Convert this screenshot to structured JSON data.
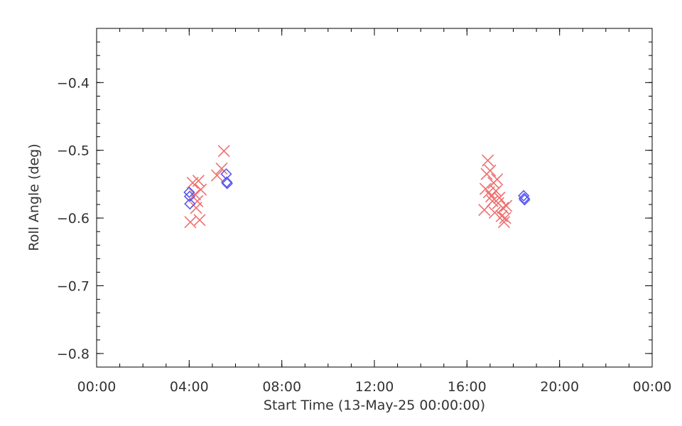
{
  "chart_data": {
    "type": "scatter",
    "title": "",
    "xlabel": "Start Time (13-May-25 00:00:00)",
    "ylabel": "Roll Angle (deg)",
    "xlim": [
      0,
      24
    ],
    "ylim": [
      -0.82,
      -0.32
    ],
    "x_ticks": [
      0,
      4,
      8,
      12,
      16,
      20,
      24
    ],
    "x_tick_labels": [
      "00:00",
      "04:00",
      "08:00",
      "12:00",
      "16:00",
      "20:00",
      "00:00"
    ],
    "x_minor_step": 1,
    "y_ticks": [
      -0.8,
      -0.7,
      -0.6,
      -0.5,
      -0.4
    ],
    "y_tick_labels": [
      "-0.8",
      "-0.7",
      "-0.6",
      "-0.5",
      "-0.4"
    ],
    "y_minor_step": 0.02,
    "grid": false,
    "series": [
      {
        "marker": "x",
        "color": "#f07070",
        "points": [
          [
            4.05,
            -0.606
          ],
          [
            4.15,
            -0.548
          ],
          [
            4.25,
            -0.565
          ],
          [
            4.3,
            -0.585
          ],
          [
            4.35,
            -0.575
          ],
          [
            4.4,
            -0.545
          ],
          [
            4.45,
            -0.603
          ],
          [
            4.5,
            -0.558
          ],
          [
            5.2,
            -0.537
          ],
          [
            5.4,
            -0.527
          ],
          [
            5.5,
            -0.501
          ],
          [
            16.75,
            -0.588
          ],
          [
            16.8,
            -0.557
          ],
          [
            16.85,
            -0.535
          ],
          [
            16.9,
            -0.515
          ],
          [
            16.95,
            -0.562
          ],
          [
            17.0,
            -0.53
          ],
          [
            17.05,
            -0.568
          ],
          [
            17.1,
            -0.575
          ],
          [
            17.15,
            -0.548
          ],
          [
            17.2,
            -0.592
          ],
          [
            17.25,
            -0.56
          ],
          [
            17.3,
            -0.543
          ],
          [
            17.35,
            -0.578
          ],
          [
            17.4,
            -0.57
          ],
          [
            17.5,
            -0.597
          ],
          [
            17.55,
            -0.585
          ],
          [
            17.6,
            -0.606
          ],
          [
            17.7,
            -0.582
          ],
          [
            17.65,
            -0.6
          ]
        ]
      },
      {
        "marker": "diamond",
        "color": "#5a5af0",
        "points": [
          [
            4.0,
            -0.562
          ],
          [
            4.02,
            -0.568
          ],
          [
            4.03,
            -0.579
          ],
          [
            5.6,
            -0.535
          ],
          [
            5.62,
            -0.547
          ],
          [
            5.64,
            -0.549
          ],
          [
            18.45,
            -0.567
          ],
          [
            18.47,
            -0.571
          ],
          [
            18.49,
            -0.573
          ]
        ]
      }
    ]
  }
}
